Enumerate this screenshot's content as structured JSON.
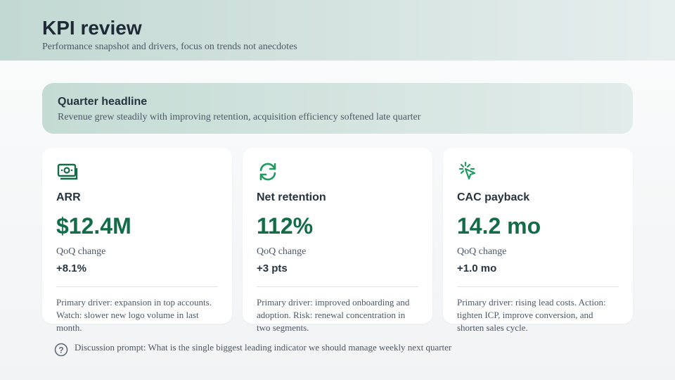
{
  "header": {
    "title": "KPI review",
    "subtitle": "Performance snapshot and drivers, focus on trends not anecdotes"
  },
  "headline": {
    "title": "Quarter headline",
    "text": "Revenue grew steadily with improving retention, acquisition efficiency softened late quarter"
  },
  "cards": [
    {
      "label": "ARR",
      "value": "$12.4M",
      "change_label": "QoQ change",
      "change": "+8.1%",
      "note": "Primary driver: expansion in top accounts. Watch: slower new logo volume in last month."
    },
    {
      "label": "Net retention",
      "value": "112%",
      "change_label": "QoQ change",
      "change": "+3 pts",
      "note": "Primary driver: improved onboarding and adoption. Risk: renewal concentration in two segments."
    },
    {
      "label": "CAC payback",
      "value": "14.2 mo",
      "change_label": "QoQ change",
      "change": "+1.0 mo",
      "note": "Primary driver: rising lead costs. Action: tighten ICP, improve conversion, and shorten sales cycle."
    }
  ],
  "prompt": {
    "text": "Discussion prompt: What is the single biggest leading indicator we should manage weekly next quarter"
  }
}
